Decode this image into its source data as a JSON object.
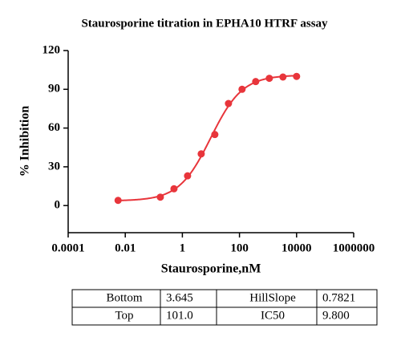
{
  "chart_data": {
    "type": "scatter",
    "title": "Staurosporine titration in EPHA10 HTRF assay",
    "x_label": "Staurosporine,nM",
    "y_label": "% Inhibition",
    "x": [
      0.0056,
      0.169,
      0.508,
      1.52,
      4.57,
      13.7,
      41.2,
      123,
      370,
      1111,
      3333,
      10000
    ],
    "values": [
      4,
      6.5,
      13,
      23,
      40,
      55,
      79,
      90,
      96,
      98.5,
      99.5,
      100
    ],
    "color": "#e8353b",
    "xscale": "log",
    "xlim": [
      0.0001,
      1000000
    ],
    "xticks": [
      0.0001,
      0.01,
      1,
      100,
      10000,
      1000000
    ],
    "ylim": [
      -21,
      120
    ],
    "yticks": [
      0,
      30,
      60,
      90,
      120
    ],
    "fit": {
      "bottom": 3.645,
      "top": 101.0,
      "hillslope": 0.7821,
      "ic50": 9.8
    }
  },
  "table": {
    "rows": [
      [
        "Bottom",
        "3.645",
        "HillSlope",
        "0.7821"
      ],
      [
        "Top",
        "101.0",
        "IC50",
        "9.800"
      ]
    ]
  }
}
